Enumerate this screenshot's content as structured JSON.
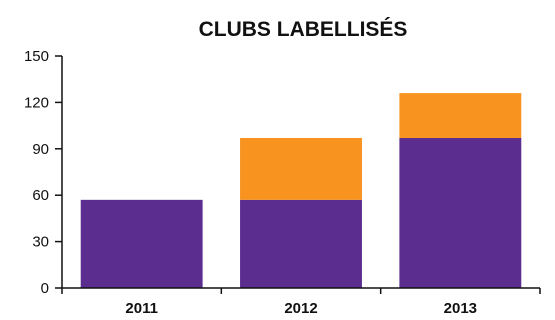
{
  "chart_data": {
    "type": "bar",
    "stacked": true,
    "title": "CLUBS LABELLISÉS",
    "xlabel": "",
    "ylabel": "",
    "categories": [
      "2011",
      "2012",
      "2013"
    ],
    "series": [
      {
        "values": [
          57,
          57,
          97
        ],
        "color": "#5b2d8e"
      },
      {
        "values": [
          0,
          40,
          29
        ],
        "color": "#f7931e"
      }
    ],
    "ylim": [
      0,
      150
    ],
    "yticks": [
      0,
      30,
      60,
      90,
      120,
      150
    ],
    "grid": false,
    "legend": "none"
  }
}
